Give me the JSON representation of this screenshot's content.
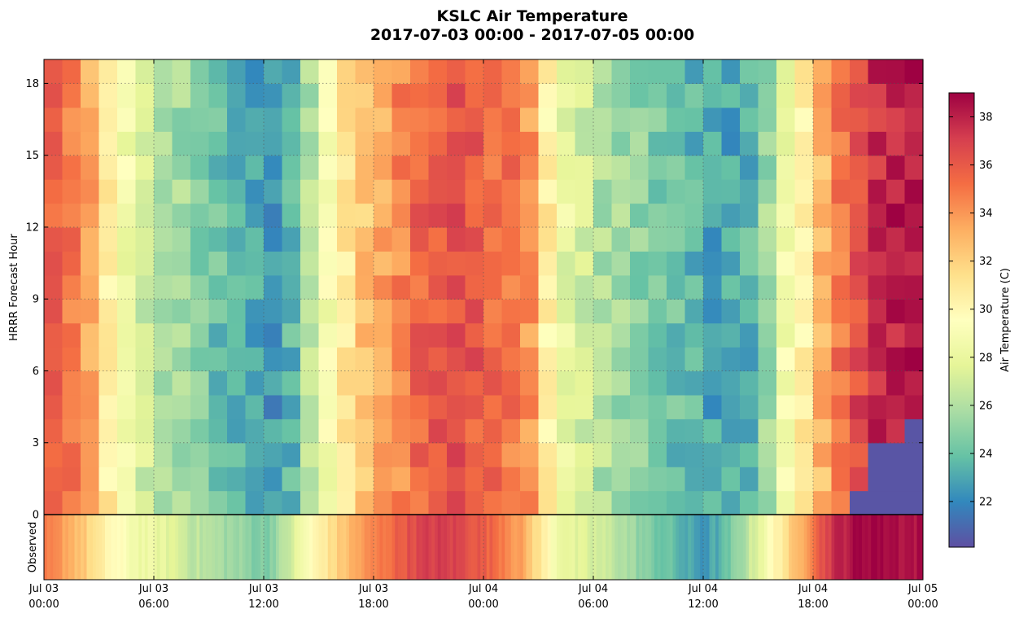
{
  "chart_data": {
    "type": "heatmap",
    "title_line1": "KSLC Air Temperature",
    "title_line2": "2017-07-03 00:00 - 2017-07-05 00:00",
    "ylabel": "HRRR Forecast Hour",
    "obs_label": "Observed",
    "colorbar_label": "Air Temperature (C)",
    "colormap": "Spectral_r",
    "vmin": 20.1,
    "vmax": 39.0,
    "ylim": [
      0,
      19
    ],
    "yticks": [
      0,
      3,
      6,
      9,
      12,
      15,
      18
    ],
    "colorbar_ticks": [
      22,
      24,
      26,
      28,
      30,
      32,
      34,
      36,
      38
    ],
    "xlim_hours": [
      0,
      48
    ],
    "xticks": [
      {
        "hour": 0,
        "day": "Jul 03",
        "time": "00:00"
      },
      {
        "hour": 6,
        "day": "Jul 03",
        "time": "06:00"
      },
      {
        "hour": 12,
        "day": "Jul 03",
        "time": "12:00"
      },
      {
        "hour": 18,
        "day": "Jul 03",
        "time": "18:00"
      },
      {
        "hour": 24,
        "day": "Jul 04",
        "time": "00:00"
      },
      {
        "hour": 30,
        "day": "Jul 04",
        "time": "06:00"
      },
      {
        "hour": 36,
        "day": "Jul 04",
        "time": "12:00"
      },
      {
        "hour": 42,
        "day": "Jul 04",
        "time": "18:00"
      },
      {
        "hour": 48,
        "day": "Jul 05",
        "time": "00:00"
      }
    ],
    "grid": true,
    "column_hours": [
      0,
      1,
      2,
      3,
      4,
      5,
      6,
      7,
      8,
      9,
      10,
      11,
      12,
      13,
      14,
      15,
      16,
      17,
      18,
      19,
      20,
      21,
      22,
      23,
      24,
      25,
      26,
      27,
      28,
      29,
      30,
      31,
      32,
      33,
      34,
      35,
      36,
      37,
      38,
      39,
      40,
      41,
      42,
      43,
      44,
      45,
      46,
      47
    ],
    "valid_hour_means_C": [
      35.5,
      35.0,
      33.5,
      30.5,
      28.5,
      27.0,
      26.0,
      25.5,
      25.0,
      24.0,
      23.5,
      23.0,
      22.5,
      23.5,
      26.0,
      29.0,
      31.0,
      32.5,
      33.5,
      34.5,
      35.5,
      36.0,
      36.5,
      36.0,
      35.5,
      35.0,
      34.0,
      30.5,
      28.0,
      27.0,
      26.0,
      25.5,
      25.0,
      24.5,
      24.0,
      23.5,
      23.0,
      23.0,
      23.5,
      25.5,
      28.5,
      30.5,
      33.0,
      35.0,
      36.5,
      37.5,
      38.0,
      38.0
    ],
    "observed_hourly_C": [
      34.5,
      33.8,
      32.5,
      30.5,
      29.5,
      28.5,
      28.0,
      27.5,
      26.5,
      26.0,
      25.5,
      25.0,
      24.5,
      26.0,
      28.5,
      30.5,
      32.0,
      33.5,
      34.5,
      35.5,
      36.5,
      37.0,
      37.0,
      36.5,
      35.8,
      35.0,
      33.5,
      31.0,
      28.5,
      27.5,
      27.0,
      26.5,
      25.5,
      24.5,
      24.0,
      23.0,
      22.5,
      23.5,
      25.5,
      28.0,
      30.5,
      32.5,
      35.5,
      37.5,
      38.5,
      39.0,
      38.8,
      38.5
    ],
    "missing_region_C": 20.3
  }
}
